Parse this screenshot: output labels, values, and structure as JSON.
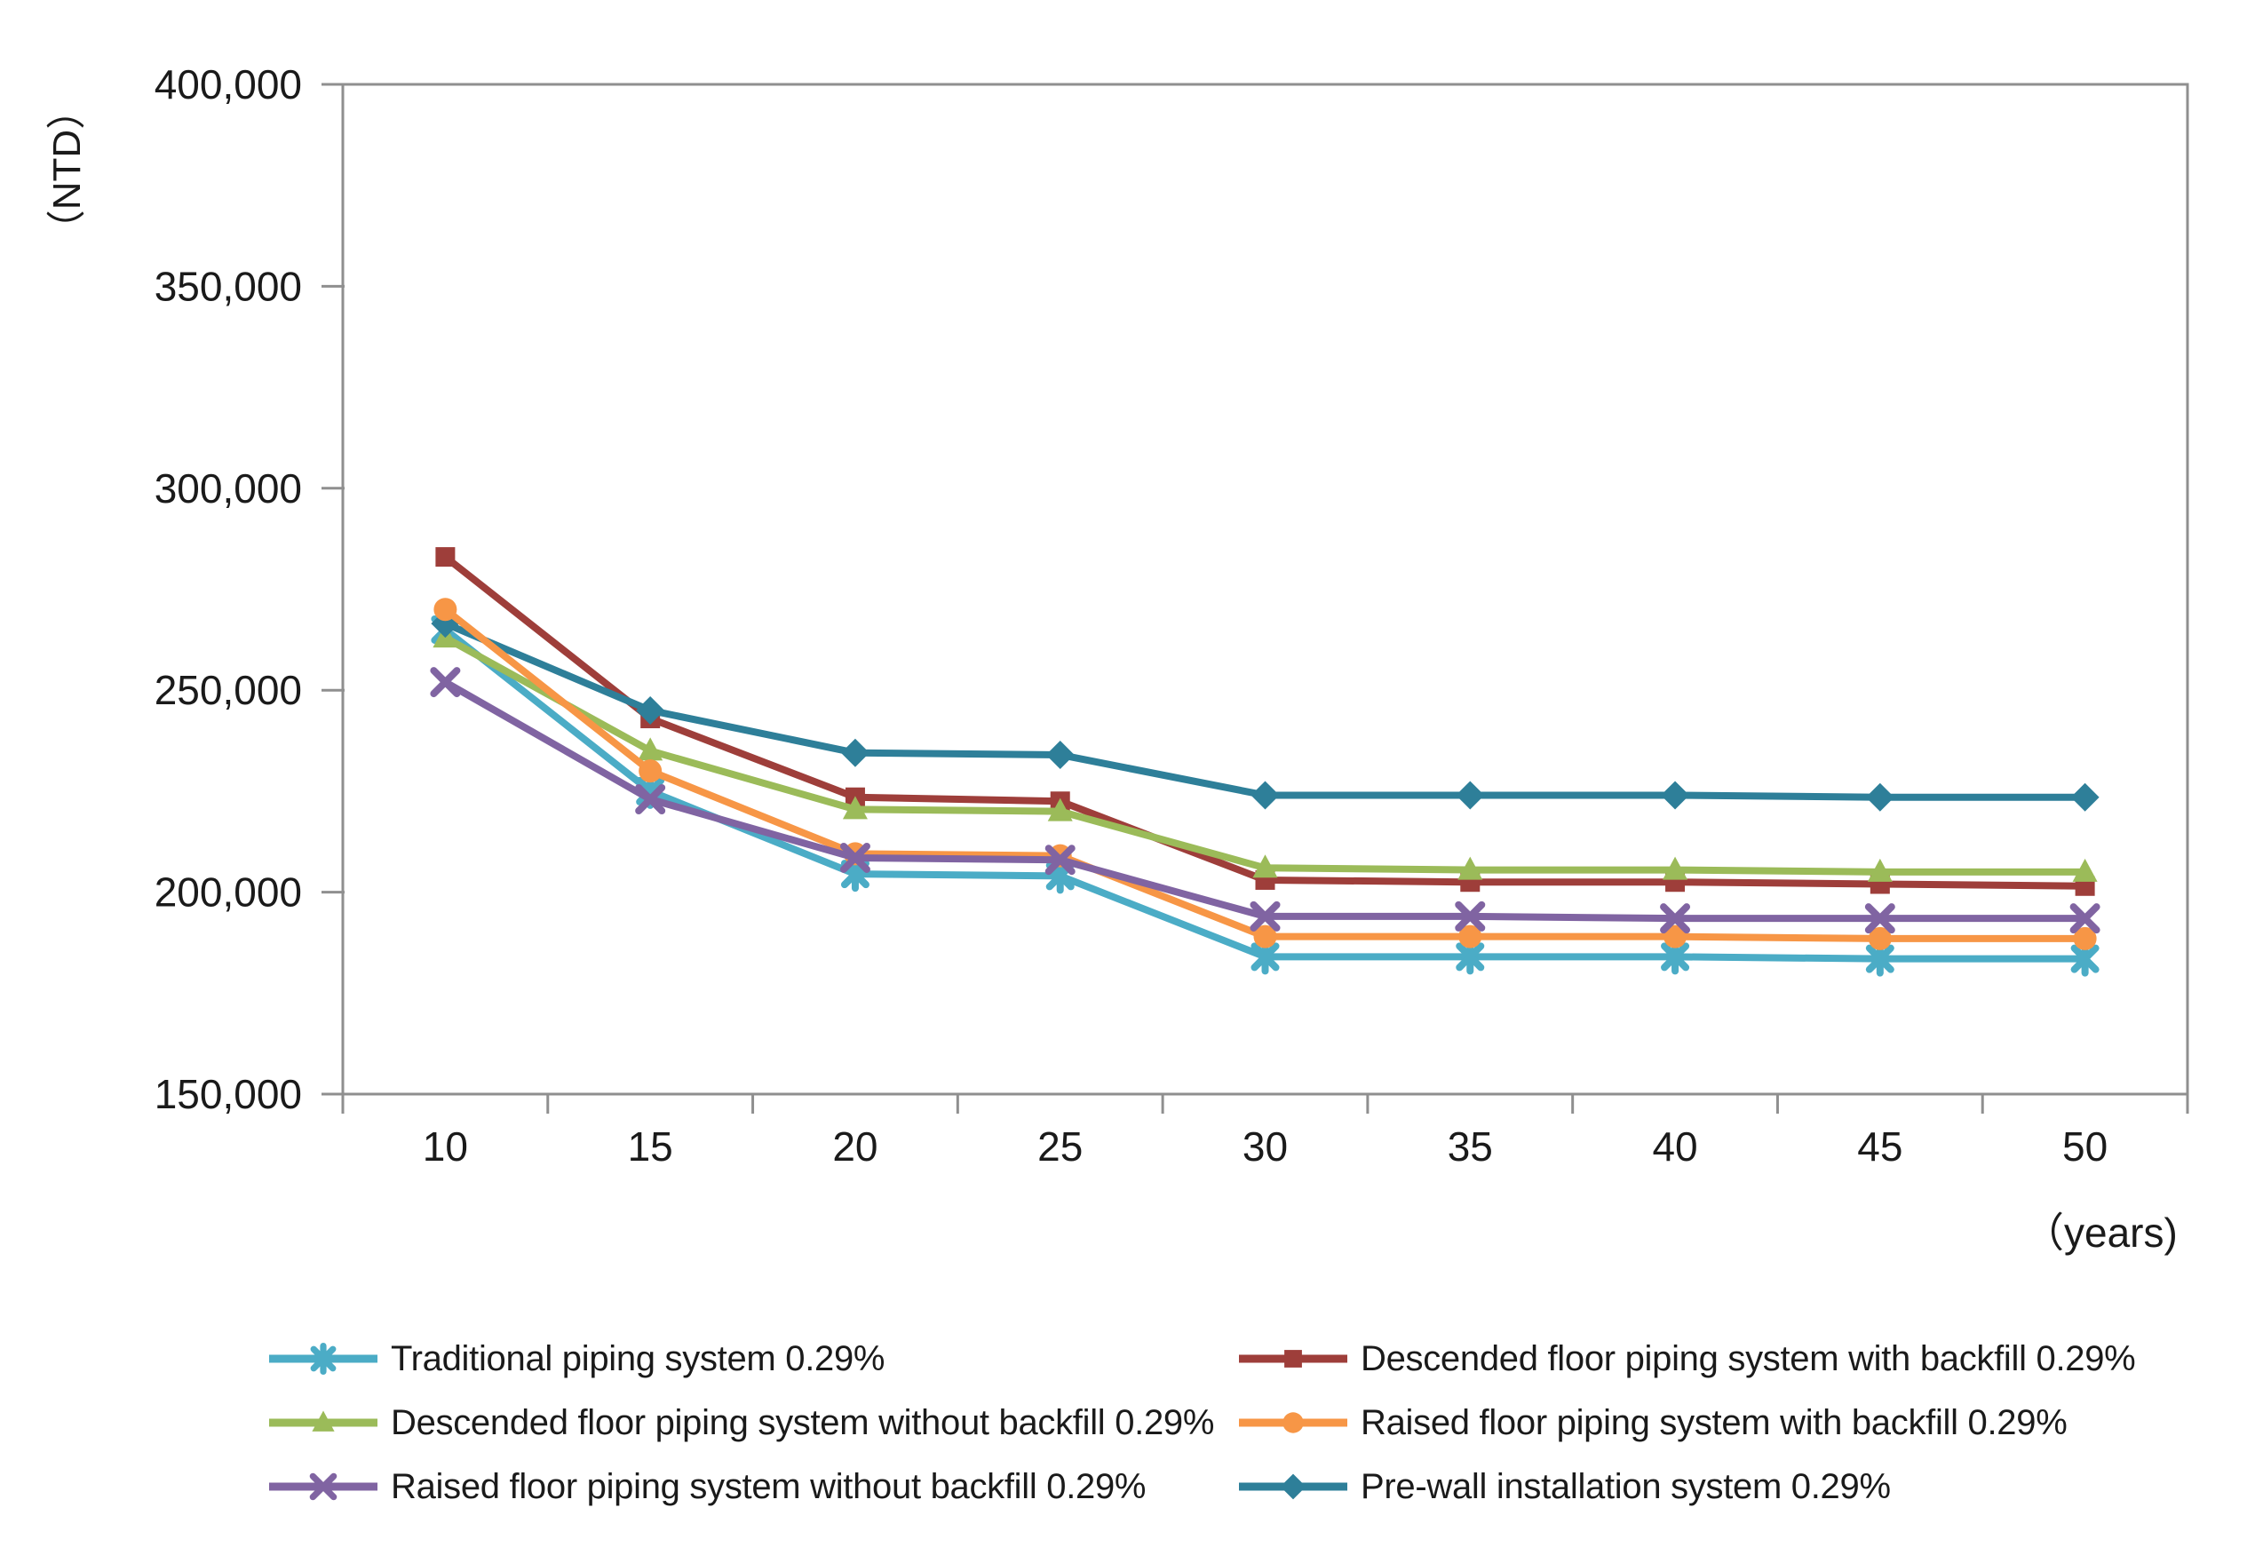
{
  "chart": {
    "y_unit_label": "（NTD）",
    "x_unit_label": "（years)"
  },
  "chart_data": {
    "type": "line",
    "title": "",
    "xlabel": "years",
    "ylabel": "NTD",
    "x": [
      10,
      15,
      20,
      25,
      30,
      35,
      40,
      45,
      50
    ],
    "x_tick_labels": [
      "10",
      "15",
      "20",
      "25",
      "30",
      "35",
      "40",
      "45",
      "50"
    ],
    "ylim": [
      150000,
      400000
    ],
    "y_tick_step": 50000,
    "y_ticks": [
      400000,
      350000,
      300000,
      250000,
      200000,
      150000
    ],
    "y_tick_labels": [
      "400,000",
      "350,000",
      "300,000",
      "250,000",
      "200,000",
      "150,000"
    ],
    "grid": false,
    "legend_position": "bottom, two columns",
    "axis_color": "#8f8f8f",
    "text_color": "#1a1a1a",
    "series": [
      {
        "key": "traditional-piping-system",
        "name": "Traditional piping system 0.29%",
        "color": "#4BACC6",
        "marker": "asterisk",
        "values": [
          265000,
          225000,
          204500,
          204000,
          184000,
          184000,
          184000,
          183500,
          183500
        ]
      },
      {
        "key": "descended-floor-piping-with-backfill",
        "name": "Descended floor piping system with backfill 0.29%",
        "color": "#9E3E3A",
        "marker": "square",
        "values": [
          283000,
          243000,
          223500,
          222500,
          203000,
          202500,
          202500,
          202000,
          201500
        ]
      },
      {
        "key": "descended-floor-piping-without-backfill",
        "name": "Descended floor piping system without backfill 0.29%",
        "color": "#9BBB59",
        "marker": "triangle",
        "values": [
          263000,
          235000,
          220500,
          220000,
          206000,
          205500,
          205500,
          205000,
          205000
        ]
      },
      {
        "key": "raised-floor-piping-with-backfill",
        "name": "Raised floor piping system with backfill 0.29%",
        "color": "#F79646",
        "marker": "circle",
        "values": [
          270000,
          230000,
          209500,
          209000,
          189000,
          189000,
          189000,
          188500,
          188500
        ]
      },
      {
        "key": "raised-floor-piping-without-backfill",
        "name": "Raised floor piping system without backfill 0.29%",
        "color": "#8064A2",
        "marker": "x",
        "values": [
          252000,
          223000,
          208500,
          208000,
          194000,
          194000,
          193500,
          193500,
          193500
        ]
      },
      {
        "key": "pre-wall-installation-system",
        "name": "Pre-wall installation system 0.29%",
        "color": "#2E7F99",
        "marker": "diamond",
        "values": [
          266500,
          245000,
          234500,
          234000,
          224000,
          224000,
          224000,
          223500,
          223500
        ]
      }
    ],
    "z_order": [
      0,
      1,
      2,
      5,
      3,
      4
    ]
  }
}
